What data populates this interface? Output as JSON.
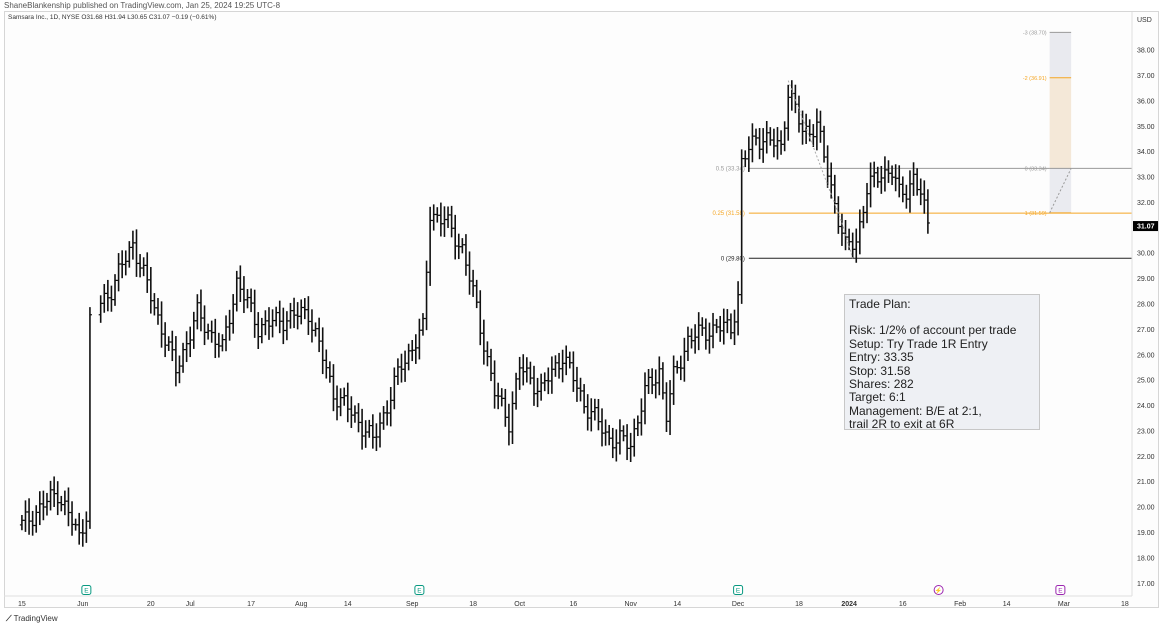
{
  "publisher_line": "ShaneBlankenship published on TradingView.com, Jan 25, 2024 19:25 UTC-8",
  "ticker_line": "Samsara Inc., 1D, NYSE  O31.68  H31.94  L30.65  C31.07  −0.19 (−0.61%)",
  "footer_brand": "TradingView",
  "trade_plan": {
    "title": "Trade Plan:",
    "lines": [
      "Risk: 1/2% of account per trade",
      "Setup: Try Trade  1R Entry",
      "Entry: 33.35",
      "Stop: 31.58",
      "Shares: 282",
      "Target: 6:1",
      "Management: B/E at 2:1,",
      "trail 2R to exit at 6R"
    ]
  },
  "colors": {
    "bars": "#111111",
    "orange": "#f5a623",
    "grey_line": "#9a9a9a",
    "black_line": "#222222",
    "earnings_marker": "#089981",
    "dividend_marker": "#9c27b0",
    "price_badge": "#000000"
  },
  "chart_data": {
    "type": "ohlc",
    "y_axis": {
      "currency": "USD",
      "ylim": [
        16.5,
        39.5
      ],
      "ticks": [
        "17.00",
        "18.00",
        "19.00",
        "20.00",
        "21.00",
        "22.00",
        "23.00",
        "24.00",
        "25.00",
        "26.00",
        "27.00",
        "28.00",
        "29.00",
        "30.00",
        "31.00",
        "32.00",
        "33.00",
        "34.00",
        "35.00",
        "36.00",
        "37.00",
        "38.00"
      ],
      "last_price": "31.07"
    },
    "x_axis": {
      "labels": [
        {
          "text": "15",
          "day": 0
        },
        {
          "text": "Jun",
          "day": 17
        },
        {
          "text": "20",
          "day": 36
        },
        {
          "text": "Jul",
          "day": 47
        },
        {
          "text": "17",
          "day": 64
        },
        {
          "text": "Aug",
          "day": 78
        },
        {
          "text": "14",
          "day": 91
        },
        {
          "text": "Sep",
          "day": 109
        },
        {
          "text": "18",
          "day": 126
        },
        {
          "text": "Oct",
          "day": 139
        },
        {
          "text": "16",
          "day": 154
        },
        {
          "text": "Nov",
          "day": 170
        },
        {
          "text": "14",
          "day": 183
        },
        {
          "text": "Dec",
          "day": 200
        },
        {
          "text": "18",
          "day": 217
        },
        {
          "text": "2024",
          "day": 231
        },
        {
          "text": "16",
          "day": 246
        },
        {
          "text": "Feb",
          "day": 262
        },
        {
          "text": "14",
          "day": 275
        },
        {
          "text": "Mar",
          "day": 291
        },
        {
          "text": "18",
          "day": 308
        }
      ],
      "range_days": [
        -5,
        310
      ],
      "last_bar_day": 253
    },
    "anchors": [
      {
        "day": 0,
        "price": 19.3
      },
      {
        "day": 10,
        "price": 20.6
      },
      {
        "day": 16,
        "price": 18.8
      },
      {
        "day": 18,
        "price": 19.8
      },
      {
        "day": 19,
        "price": 27.4
      },
      {
        "day": 25,
        "price": 28.6
      },
      {
        "day": 31,
        "price": 30.4
      },
      {
        "day": 36,
        "price": 28.3
      },
      {
        "day": 43,
        "price": 25.4
      },
      {
        "day": 49,
        "price": 27.6
      },
      {
        "day": 56,
        "price": 26.2
      },
      {
        "day": 60,
        "price": 28.9
      },
      {
        "day": 66,
        "price": 27.1
      },
      {
        "day": 80,
        "price": 27.7
      },
      {
        "day": 87,
        "price": 24.5
      },
      {
        "day": 94,
        "price": 23.4
      },
      {
        "day": 98,
        "price": 22.6
      },
      {
        "day": 102,
        "price": 24.0
      },
      {
        "day": 106,
        "price": 25.6
      },
      {
        "day": 112,
        "price": 27.0
      },
      {
        "day": 114,
        "price": 31.6
      },
      {
        "day": 118,
        "price": 31.3
      },
      {
        "day": 123,
        "price": 30.2
      },
      {
        "day": 127,
        "price": 27.8
      },
      {
        "day": 132,
        "price": 24.5
      },
      {
        "day": 136,
        "price": 23.4
      },
      {
        "day": 139,
        "price": 25.5
      },
      {
        "day": 145,
        "price": 24.6
      },
      {
        "day": 151,
        "price": 26.0
      },
      {
        "day": 157,
        "price": 24.1
      },
      {
        "day": 164,
        "price": 22.7
      },
      {
        "day": 170,
        "price": 22.5
      },
      {
        "day": 174,
        "price": 24.5
      },
      {
        "day": 178,
        "price": 25.4
      },
      {
        "day": 180,
        "price": 23.6
      },
      {
        "day": 182,
        "price": 25.1
      },
      {
        "day": 186,
        "price": 26.6
      },
      {
        "day": 192,
        "price": 27.0
      },
      {
        "day": 198,
        "price": 27.1
      },
      {
        "day": 200,
        "price": 28.3
      },
      {
        "day": 201,
        "price": 33.5
      },
      {
        "day": 205,
        "price": 34.6
      },
      {
        "day": 212,
        "price": 34.2
      },
      {
        "day": 214,
        "price": 36.4
      },
      {
        "day": 218,
        "price": 34.8
      },
      {
        "day": 222,
        "price": 35.0
      },
      {
        "day": 226,
        "price": 32.6
      },
      {
        "day": 230,
        "price": 30.2
      },
      {
        "day": 233,
        "price": 30.5
      },
      {
        "day": 236,
        "price": 32.5
      },
      {
        "day": 240,
        "price": 33.2
      },
      {
        "day": 243,
        "price": 33.2
      },
      {
        "day": 245,
        "price": 32.3
      },
      {
        "day": 247,
        "price": 32.5
      },
      {
        "day": 249,
        "price": 33.0
      },
      {
        "day": 251,
        "price": 32.3
      },
      {
        "day": 253,
        "price": 31.1
      }
    ],
    "gaps": [
      [
        20,
        21
      ]
    ],
    "fib_levels": [
      {
        "label": "0.5 (33.34)",
        "price": 33.34,
        "color": "#9a9a9a",
        "from_day": 203
      },
      {
        "label": "0.25 (31.58)",
        "price": 31.58,
        "color": "#f5a623",
        "from_day": 203
      },
      {
        "label": "0 (29.80)",
        "price": 29.8,
        "color": "#222222",
        "from_day": 203
      }
    ],
    "trade_projection": {
      "from_day": 287,
      "to_day": 293,
      "levels": [
        {
          "label": "-3 (38.70)",
          "price": 38.7,
          "color": "#9a9a9a"
        },
        {
          "label": "-2 (36.91)",
          "price": 36.91,
          "color": "#f5a623"
        },
        {
          "label": "0 (33.34)",
          "price": 33.34,
          "color": "#9a9a9a"
        },
        {
          "label": "1 (31.59)",
          "price": 31.59,
          "color": "#f5a623"
        }
      ]
    },
    "markers": [
      {
        "day": 18,
        "type": "E"
      },
      {
        "day": 111,
        "type": "E"
      },
      {
        "day": 200,
        "type": "E"
      },
      {
        "day": 256,
        "type": "D"
      },
      {
        "day": 290,
        "type": "E2"
      }
    ]
  }
}
